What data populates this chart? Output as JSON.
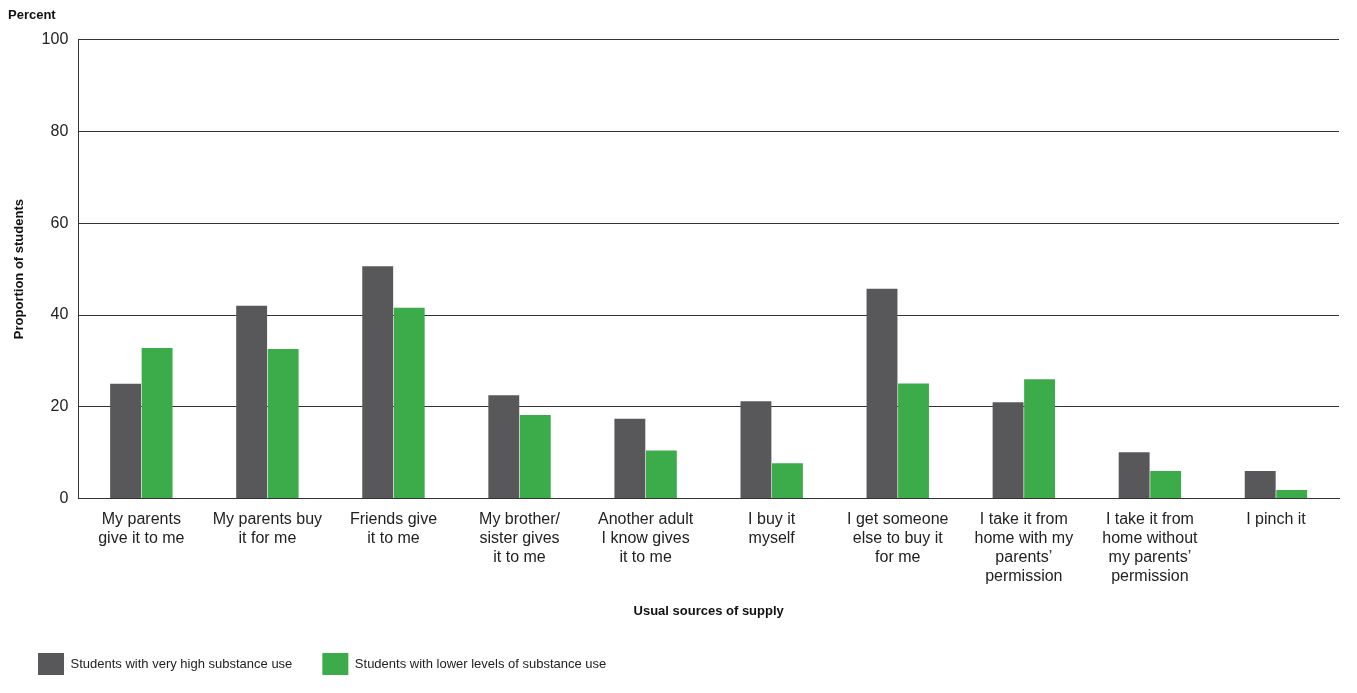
{
  "chart_data": {
    "type": "bar",
    "subtitle": "Percent",
    "xlabel": "Usual sources of supply",
    "ylabel": "Proportion of students",
    "categories": [
      "My parents give it to me",
      "My parents buy it for me",
      "Friends give it to me",
      "My brother/ sister gives it to me",
      "Another adult I know gives it to me",
      "I buy it myself",
      "I get someone else to buy it for me",
      "I take it from home with my parents’ permission",
      "I take it from home without my parents’ permission",
      "I pinch it"
    ],
    "series": [
      {
        "name": "Students with very high substance use",
        "color": "#58585a",
        "values": [
          25,
          42,
          50.6,
          22.5,
          17.4,
          21.2,
          45.7,
          21,
          10.1,
          6
        ]
      },
      {
        "name": "Students with lower levels of substance use",
        "color": "#3cac4a",
        "values": [
          32.8,
          32.6,
          41.6,
          18.2,
          10.5,
          7.7,
          25.1,
          26,
          6,
          1.9
        ]
      }
    ],
    "ylim": [
      0,
      100
    ],
    "yticks": [
      0,
      20,
      40,
      60,
      80,
      100
    ],
    "grid": "y",
    "legend": "bottom left"
  }
}
